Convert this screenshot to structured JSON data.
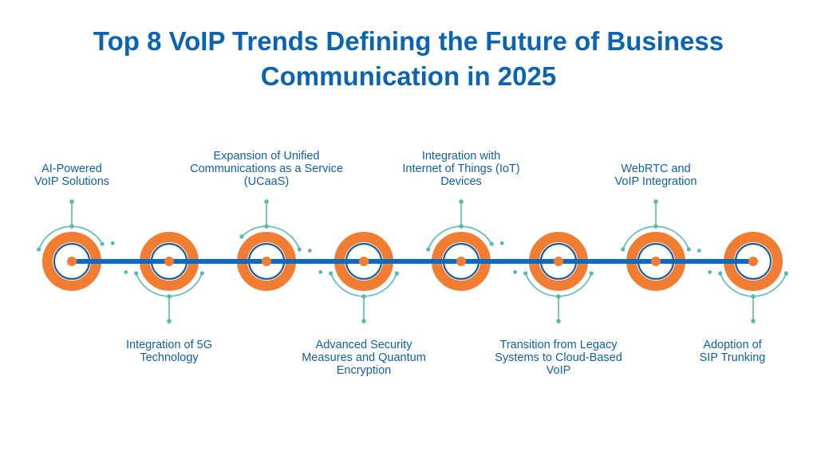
{
  "title": {
    "line1": "Top 8 VoIP Trends Defining the Future of Business",
    "line2": "Communication in 2025"
  },
  "colors": {
    "title": "#0b63b3",
    "label": "#0e5fa6",
    "timeline": "#0a6bc0",
    "ring": "#f07d31",
    "node_border": "#1d5f9c",
    "connector": "#56b9b4"
  },
  "trends": [
    {
      "position": "top",
      "lines": [
        "AI-Powered",
        "VoIP Solutions"
      ]
    },
    {
      "position": "bottom",
      "lines": [
        "Integration of 5G",
        "Technology"
      ]
    },
    {
      "position": "top",
      "lines": [
        "Expansion of Unified",
        "Communications as a Service",
        "(UCaaS)"
      ]
    },
    {
      "position": "bottom",
      "lines": [
        "Advanced Security",
        "Measures and Quantum",
        "Encryption"
      ]
    },
    {
      "position": "top",
      "lines": [
        "Integration with",
        "Internet of Things (IoT)",
        "Devices"
      ]
    },
    {
      "position": "bottom",
      "lines": [
        "Transition from Legacy",
        "Systems to Cloud-Based",
        "VoIP"
      ]
    },
    {
      "position": "top",
      "lines": [
        "WebRTC and",
        "VoIP Integration"
      ]
    },
    {
      "position": "bottom",
      "lines": [
        "Adoption of",
        "SIP Trunking"
      ]
    }
  ]
}
